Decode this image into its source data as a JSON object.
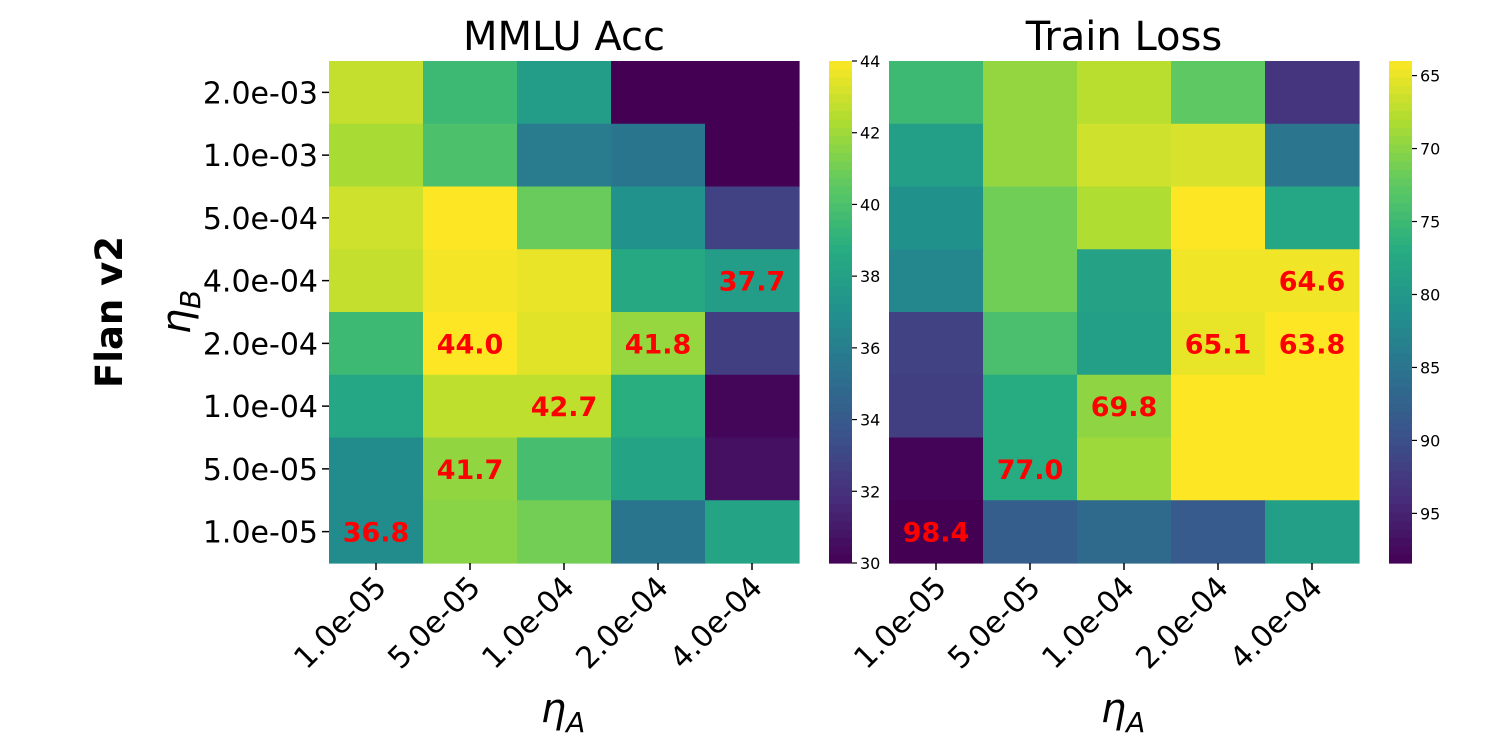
{
  "row_label": "Flan v2",
  "y_axis_label": "η",
  "y_axis_label_sub": "B",
  "x_axis_label": "η",
  "x_axis_label_sub": "A",
  "y_ticks": [
    "2.0e-03",
    "1.0e-03",
    "5.0e-04",
    "4.0e-04",
    "2.0e-04",
    "1.0e-04",
    "5.0e-05",
    "1.0e-05"
  ],
  "x_ticks": [
    "1.0e-05",
    "5.0e-05",
    "1.0e-04",
    "2.0e-04",
    "4.0e-04"
  ],
  "colormap": "viridis",
  "annotation_color": "#ff0000",
  "chart_data": [
    {
      "type": "heatmap",
      "title": "MMLU Acc",
      "x": [
        "1.0e-05",
        "5.0e-05",
        "1.0e-04",
        "2.0e-04",
        "4.0e-04"
      ],
      "y": [
        "2.0e-03",
        "1.0e-03",
        "5.0e-04",
        "4.0e-04",
        "2.0e-04",
        "1.0e-04",
        "5.0e-05",
        "1.0e-05"
      ],
      "values": [
        [
          42.8,
          39.5,
          37.8,
          30.0,
          30.0
        ],
        [
          42.2,
          40.0,
          35.8,
          35.5,
          30.0
        ],
        [
          43.0,
          44.0,
          40.8,
          37.2,
          32.8
        ],
        [
          42.8,
          43.8,
          43.6,
          38.5,
          37.7
        ],
        [
          39.5,
          44.0,
          43.4,
          41.8,
          32.6
        ],
        [
          38.3,
          42.7,
          42.7,
          38.8,
          30.2
        ],
        [
          36.8,
          41.7,
          39.8,
          38.2,
          30.6
        ],
        [
          36.8,
          41.5,
          41.0,
          35.5,
          38.2
        ]
      ],
      "annotations": [
        {
          "row": 3,
          "col": 4,
          "text": "37.7"
        },
        {
          "row": 4,
          "col": 1,
          "text": "44.0"
        },
        {
          "row": 4,
          "col": 3,
          "text": "41.8"
        },
        {
          "row": 5,
          "col": 2,
          "text": "42.7"
        },
        {
          "row": 6,
          "col": 1,
          "text": "41.7"
        },
        {
          "row": 7,
          "col": 0,
          "text": "36.8"
        }
      ],
      "colorbar": {
        "min": 30,
        "max": 44,
        "ticks": [
          30,
          32,
          34,
          36,
          38,
          40,
          42,
          44
        ],
        "reversed": false
      }
    },
    {
      "type": "heatmap",
      "title": "Train Loss",
      "x": [
        "1.0e-05",
        "5.0e-05",
        "1.0e-04",
        "2.0e-04",
        "4.0e-04"
      ],
      "y": [
        "2.0e-03",
        "1.0e-03",
        "5.0e-04",
        "4.0e-04",
        "2.0e-04",
        "1.0e-04",
        "5.0e-05",
        "1.0e-05"
      ],
      "values": [
        [
          75.0,
          69.5,
          67.5,
          72.5,
          93.0
        ],
        [
          79.0,
          69.5,
          66.5,
          66.0,
          85.0
        ],
        [
          81.0,
          71.5,
          68.0,
          64.0,
          78.0
        ],
        [
          82.5,
          71.5,
          78.5,
          64.6,
          64.6
        ],
        [
          91.5,
          74.0,
          79.0,
          65.1,
          63.8
        ],
        [
          92.0,
          77.0,
          69.8,
          64.0,
          64.0
        ],
        [
          98.0,
          77.0,
          69.0,
          64.0,
          64.0
        ],
        [
          98.4,
          88.0,
          86.5,
          88.5,
          79.0
        ]
      ],
      "annotations": [
        {
          "row": 3,
          "col": 4,
          "text": "64.6"
        },
        {
          "row": 4,
          "col": 3,
          "text": "65.1"
        },
        {
          "row": 4,
          "col": 4,
          "text": "63.8"
        },
        {
          "row": 5,
          "col": 2,
          "text": "69.8"
        },
        {
          "row": 6,
          "col": 1,
          "text": "77.0"
        },
        {
          "row": 7,
          "col": 0,
          "text": "98.4"
        }
      ],
      "colorbar": {
        "min": 64,
        "max": 98.4,
        "ticks": [
          65,
          70,
          75,
          80,
          85,
          90,
          95
        ],
        "reversed": true
      }
    }
  ]
}
